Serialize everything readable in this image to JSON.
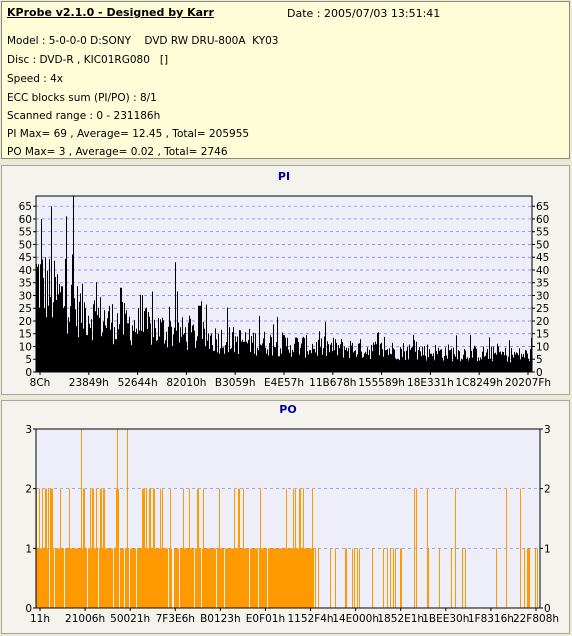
{
  "info": {
    "title": "KProbe v2.1.0 - Designed by Karr",
    "date": "Date : 2005/07/03 13:51:41",
    "lines": [
      "Model : 5-0-0-0 D:SONY    DVD RW DRU-800A  KY03",
      "Disc : DVD-R , KIC01RG080   []",
      "Speed : 4x",
      "ECC blocks sum (PI/PO) : 8/1",
      "Scanned range : 0 - 231186h",
      "PI Max= 69 , Average= 12.45 , Total= 205955",
      "PO Max= 3 , Average= 0.02 , Total= 2746"
    ]
  },
  "colors": {
    "pi": "#000000",
    "po": "#ff9900",
    "plot_bg": "#eeeef8",
    "grid": "#7070ff",
    "title": "#0000a0"
  },
  "chart_data": [
    {
      "type": "area",
      "title": "PI",
      "ylim": [
        0,
        69
      ],
      "y_ticks": [
        0,
        5,
        10,
        15,
        20,
        25,
        30,
        35,
        40,
        45,
        50,
        55,
        60,
        65
      ],
      "x_tick_labels": [
        "8Ch",
        "23849h",
        "52644h",
        "82010h",
        "B3059h",
        "E4E57h",
        "11B678h",
        "155589h",
        "18E331h",
        "1C8249h",
        "20207Fh"
      ],
      "grid": "dashed horizontal",
      "series": [
        {
          "envelope_x": [
            0,
            0.03,
            0.08,
            0.15,
            0.25,
            0.35,
            0.45,
            0.55,
            0.65,
            0.75,
            0.85,
            1.0
          ],
          "envelope_y": [
            45,
            38,
            30,
            24,
            20,
            16,
            14,
            12,
            11,
            10,
            9,
            8
          ],
          "spikes": [
            [
              0.01,
              60
            ],
            [
              0.03,
              65
            ],
            [
              0.06,
              61
            ],
            [
              0.075,
              69
            ],
            [
              0.17,
              33
            ],
            [
              0.28,
              43
            ],
            [
              0.33,
              26
            ],
            [
              0.45,
              22
            ]
          ],
          "max": 69,
          "average": 12.45
        }
      ]
    },
    {
      "type": "bar",
      "title": "PO",
      "ylim": [
        0,
        3
      ],
      "y_ticks": [
        0,
        1,
        2,
        3
      ],
      "x_tick_labels": [
        "11h",
        "21006h",
        "50021h",
        "7F3E6h",
        "B0123h",
        "E0F01h",
        "1152F4h",
        "14E000h",
        "1852E1h",
        "1BEE30h",
        "1F8316h",
        "22F808h"
      ],
      "grid": "dashed horizontal",
      "series": [
        {
          "dense_level_1_until": 0.55,
          "level_3_at": [
            0.09,
            0.16,
            0.18
          ],
          "level_2_density": [
            [
              0,
              0.12,
              0.6
            ],
            [
              0.12,
              0.55,
              0.35
            ],
            [
              0.55,
              1.0,
              0.05
            ]
          ],
          "max": 3,
          "average": 0.02
        }
      ]
    }
  ]
}
